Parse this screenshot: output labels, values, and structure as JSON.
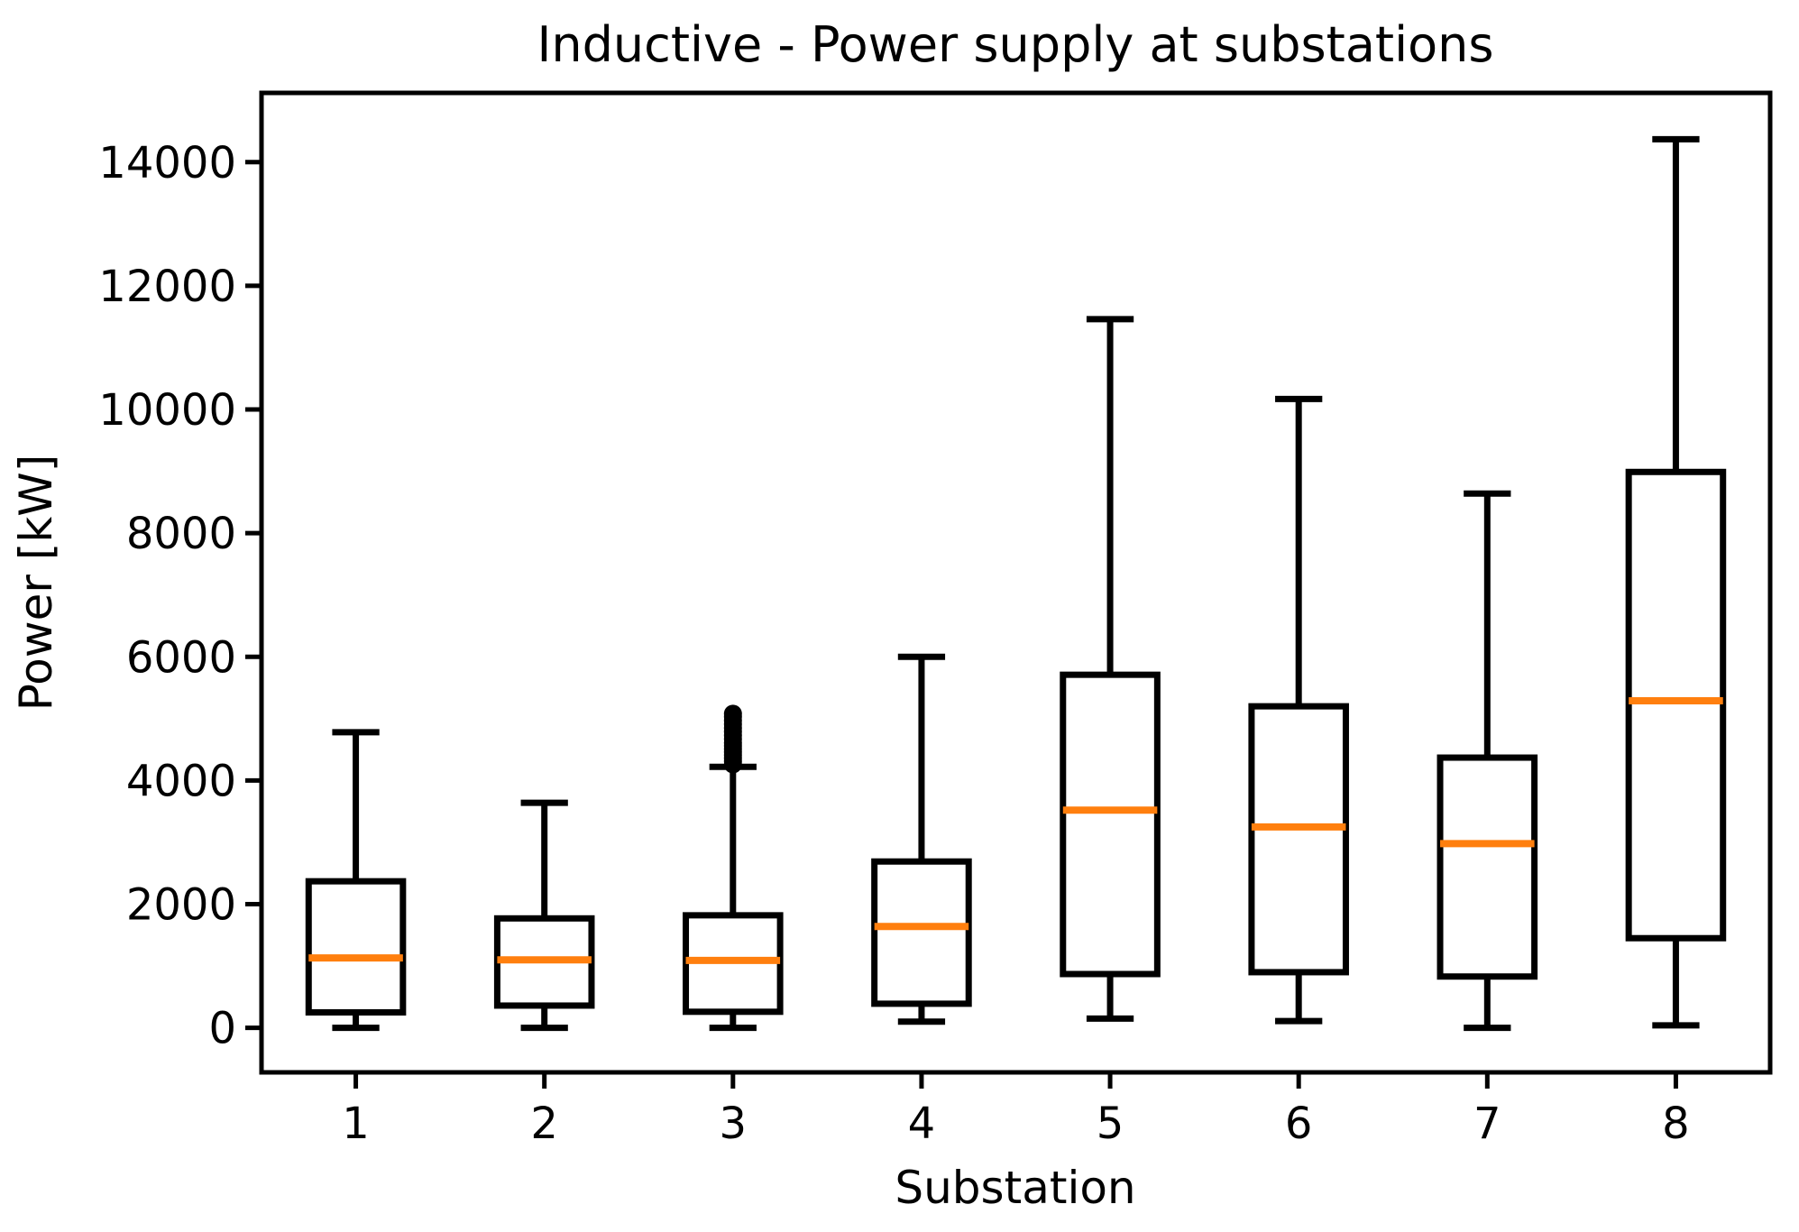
{
  "figure": {
    "background": "#ffffff",
    "units": "kW"
  },
  "chart_data": {
    "type": "box",
    "title": "Inductive - Power supply at substations",
    "xlabel": "Substation",
    "ylabel": "Power [kW]",
    "categories": [
      "1",
      "2",
      "3",
      "4",
      "5",
      "6",
      "7",
      "8"
    ],
    "ylim": [
      -720,
      15120
    ],
    "yticks": [
      0,
      2000,
      4000,
      6000,
      8000,
      10000,
      12000,
      14000
    ],
    "grid": false,
    "legend_position": "none",
    "colors": {
      "box": "#000000",
      "whisker": "#000000",
      "median": "#ff7f0e",
      "outlier": "#000000",
      "background": "#ffffff"
    },
    "series": [
      {
        "category": "1",
        "whislo": 0,
        "q1": 250,
        "med": 1130,
        "q3": 2370,
        "whishi": 4780,
        "outliers": []
      },
      {
        "category": "2",
        "whislo": 0,
        "q1": 360,
        "med": 1100,
        "q3": 1770,
        "whishi": 3640,
        "outliers": []
      },
      {
        "category": "3",
        "whislo": 0,
        "q1": 260,
        "med": 1090,
        "q3": 1820,
        "whishi": 4220,
        "outliers": [
          4260,
          4310,
          4360,
          4410,
          4460,
          4510,
          4560,
          4610,
          4670,
          4730,
          4790,
          4850,
          4910,
          4970,
          5030,
          5080
        ]
      },
      {
        "category": "4",
        "whislo": 100,
        "q1": 390,
        "med": 1640,
        "q3": 2690,
        "whishi": 6000,
        "outliers": []
      },
      {
        "category": "5",
        "whislo": 150,
        "q1": 870,
        "med": 3520,
        "q3": 5710,
        "whishi": 11460,
        "outliers": []
      },
      {
        "category": "6",
        "whislo": 110,
        "q1": 900,
        "med": 3250,
        "q3": 5200,
        "whishi": 10170,
        "outliers": []
      },
      {
        "category": "7",
        "whislo": 0,
        "q1": 830,
        "med": 2980,
        "q3": 4370,
        "whishi": 8640,
        "outliers": []
      },
      {
        "category": "8",
        "whislo": 40,
        "q1": 1450,
        "med": 5290,
        "q3": 8990,
        "whishi": 14370,
        "outliers": []
      }
    ]
  }
}
